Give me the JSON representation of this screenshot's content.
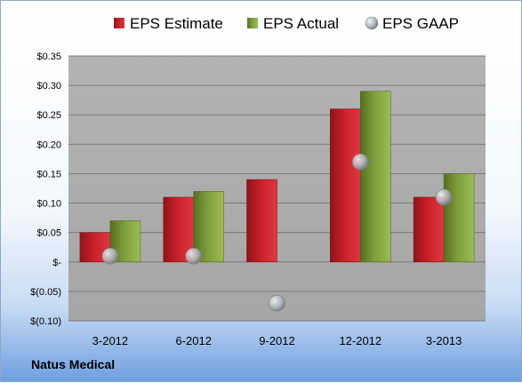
{
  "footer": {
    "company": "Natus Medical"
  },
  "colors": {
    "estimate": "#c8202a",
    "actual": "#7e9e3c",
    "gaap": "#b4b8be",
    "plot_bg": "#a6a6a6"
  },
  "chart_data": {
    "type": "bar",
    "categories": [
      "3-2012",
      "6-2012",
      "9-2012",
      "12-2012",
      "3-2013"
    ],
    "series": [
      {
        "name": "EPS Estimate",
        "kind": "bar",
        "values": [
          0.05,
          0.11,
          0.14,
          0.26,
          0.11
        ]
      },
      {
        "name": "EPS Actual",
        "kind": "bar",
        "values": [
          0.07,
          0.12,
          null,
          0.29,
          0.15
        ]
      },
      {
        "name": "EPS GAAP",
        "kind": "marker",
        "values": [
          0.01,
          0.01,
          -0.07,
          0.17,
          0.11
        ]
      }
    ],
    "y_ticks": [
      {
        "value": 0.35,
        "label": "$0.35"
      },
      {
        "value": 0.3,
        "label": "$0.30"
      },
      {
        "value": 0.25,
        "label": "$0.25"
      },
      {
        "value": 0.2,
        "label": "$0.20"
      },
      {
        "value": 0.15,
        "label": "$0.15"
      },
      {
        "value": 0.1,
        "label": "$0.10"
      },
      {
        "value": 0.05,
        "label": "$0.05"
      },
      {
        "value": 0,
        "label": "$-"
      },
      {
        "value": -0.05,
        "label": "$(0.05)"
      },
      {
        "value": -0.1,
        "label": "$(0.10)"
      }
    ],
    "ylim": [
      -0.1,
      0.35
    ],
    "grid": true,
    "legend_position": "top"
  }
}
